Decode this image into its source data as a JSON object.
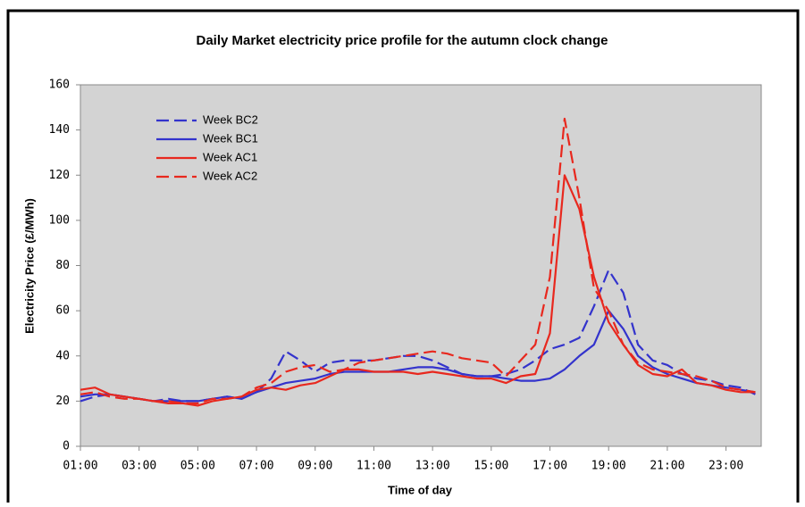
{
  "chart_data": {
    "type": "line",
    "title": "Daily Market electricity price profile  for the autumn clock change",
    "y_label": "Electricity Price (£/MWh)",
    "x_label": "Time of day",
    "categories": [
      "01:00",
      null,
      null,
      null,
      "03:00",
      null,
      null,
      null,
      "05:00",
      null,
      null,
      null,
      "07:00",
      null,
      null,
      null,
      "09:00",
      null,
      null,
      null,
      "11:00",
      null,
      null,
      null,
      "13:00",
      null,
      null,
      null,
      "15:00",
      null,
      null,
      null,
      "17:00",
      null,
      null,
      null,
      "19:00",
      null,
      null,
      null,
      "21:00",
      null,
      null,
      null,
      "23:00",
      null,
      null
    ],
    "series": [
      {
        "name": "Week BC2",
        "color": "#3333cc",
        "dashed": true,
        "values": [
          20,
          22,
          23,
          22,
          21,
          20,
          21,
          20,
          20,
          21,
          22,
          21,
          24,
          30,
          42,
          38,
          33,
          37,
          38,
          38,
          38,
          39,
          40,
          40,
          38,
          35,
          32,
          31,
          31,
          32,
          34,
          38,
          43,
          45,
          48,
          62,
          78,
          68,
          45,
          38,
          36,
          32,
          30,
          29,
          27,
          26,
          23
        ]
      },
      {
        "name": "Week BC1",
        "color": "#3333cc",
        "dashed": false,
        "values": [
          22,
          23,
          23,
          22,
          21,
          20,
          20,
          20,
          20,
          21,
          22,
          21,
          24,
          26,
          28,
          29,
          30,
          32,
          33,
          33,
          33,
          33,
          34,
          35,
          35,
          34,
          32,
          31,
          31,
          30,
          29,
          29,
          30,
          34,
          40,
          45,
          60,
          52,
          40,
          35,
          32,
          30,
          28,
          27,
          26,
          25,
          24
        ]
      },
      {
        "name": "Week AC1",
        "color": "#e8281e",
        "dashed": false,
        "values": [
          25,
          26,
          23,
          22,
          21,
          20,
          19,
          19,
          18,
          20,
          21,
          22,
          25,
          26,
          25,
          27,
          28,
          31,
          34,
          34,
          33,
          33,
          33,
          32,
          33,
          32,
          31,
          30,
          30,
          28,
          31,
          32,
          50,
          120,
          105,
          75,
          55,
          45,
          36,
          32,
          31,
          34,
          28,
          27,
          25,
          24,
          24
        ]
      },
      {
        "name": "Week AC2",
        "color": "#e8281e",
        "dashed": true,
        "values": [
          23,
          24,
          22,
          21,
          21,
          20,
          20,
          19,
          19,
          21,
          21,
          22,
          26,
          28,
          33,
          35,
          36,
          33,
          34,
          37,
          38,
          39,
          40,
          41,
          42,
          41,
          39,
          38,
          37,
          31,
          38,
          45,
          75,
          145,
          110,
          70,
          60,
          45,
          37,
          34,
          33,
          32,
          31,
          29,
          26,
          25,
          24
        ]
      }
    ],
    "ylim": [
      0,
      160
    ],
    "yticks": [
      0,
      20,
      40,
      60,
      80,
      100,
      120,
      140,
      160
    ],
    "grid": false,
    "plot_background": "#d3d3d3",
    "legend": "upper left"
  }
}
